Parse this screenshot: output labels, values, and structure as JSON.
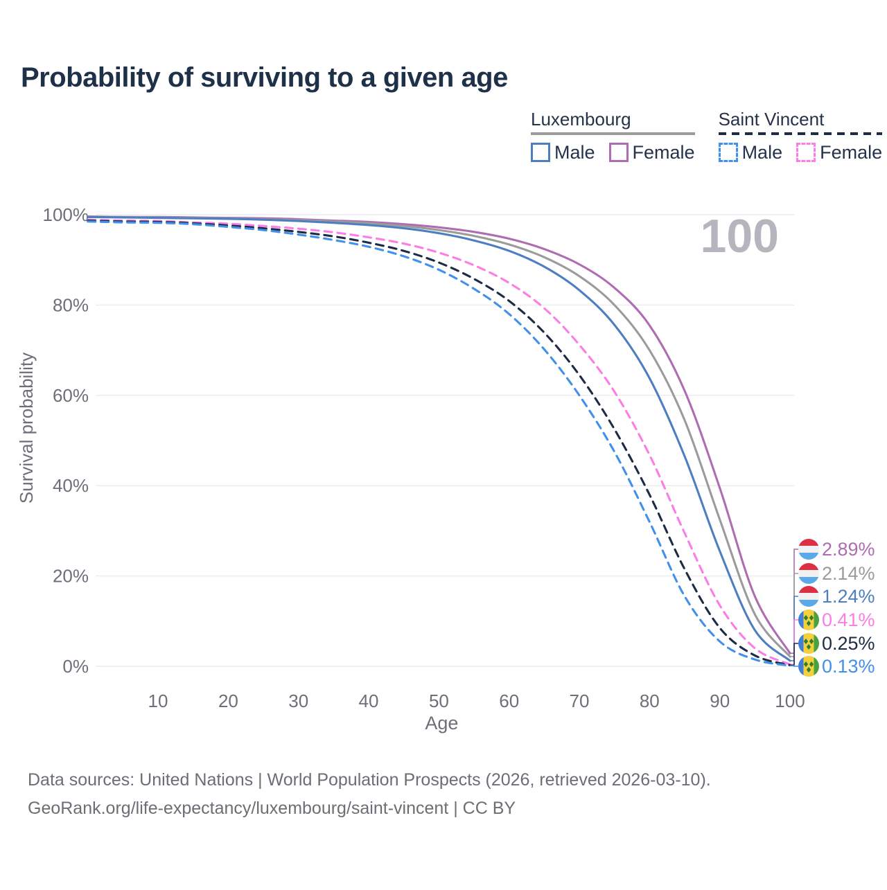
{
  "title": "Probability of surviving to a given age",
  "legend": {
    "groups": [
      {
        "title": "Luxembourg",
        "underline_color": "#9b9b9b",
        "underline_style": "solid",
        "items": [
          {
            "label": "Male",
            "color": "#4d7fc0",
            "dashed": false
          },
          {
            "label": "Female",
            "color": "#ae6cb2",
            "dashed": false
          }
        ]
      },
      {
        "title": "Saint Vincent",
        "underline_color": "#1d2b45",
        "underline_style": "dashed",
        "items": [
          {
            "label": "Male",
            "color": "#4190ea",
            "dashed": true
          },
          {
            "label": "Female",
            "color": "#fc7de4",
            "dashed": true
          }
        ]
      }
    ]
  },
  "chart_data": {
    "type": "line",
    "title": "Probability of surviving to a given age",
    "xlabel": "Age",
    "ylabel": "Survival probability",
    "xlim": [
      0,
      100
    ],
    "ylim": [
      0,
      100
    ],
    "grid": "horizontal",
    "legend_position": "top-right",
    "watermark": "100",
    "x_ticks": [
      10,
      20,
      30,
      40,
      50,
      60,
      70,
      80,
      90,
      100
    ],
    "y_tick_values": [
      0,
      20,
      40,
      60,
      80,
      100
    ],
    "y_tick_labels": [
      "0%",
      "20%",
      "40%",
      "60%",
      "80%",
      "100%"
    ],
    "ages": [
      0,
      5,
      10,
      15,
      20,
      25,
      30,
      35,
      40,
      45,
      50,
      55,
      60,
      65,
      70,
      75,
      80,
      85,
      90,
      95,
      100
    ],
    "series": [
      {
        "id": "luxembourg-female",
        "name": "Luxembourg Female",
        "color": "#ae6cb2",
        "dashed": false,
        "flag": "luxembourg",
        "end_label": "2.89%",
        "values": [
          99.6,
          99.5,
          99.5,
          99.4,
          99.3,
          99.2,
          99.0,
          98.7,
          98.4,
          97.9,
          97.2,
          96.2,
          94.7,
          92.4,
          89.0,
          83.8,
          75.5,
          61.0,
          39.5,
          15.5,
          2.89
        ]
      },
      {
        "id": "luxembourg-both",
        "name": "Luxembourg Both sexes",
        "color": "#9b9b9b",
        "dashed": false,
        "flag": "luxembourg",
        "end_label": "2.14%",
        "values": [
          99.5,
          99.5,
          99.4,
          99.3,
          99.2,
          99.0,
          98.8,
          98.5,
          98.1,
          97.5,
          96.6,
          95.3,
          93.4,
          90.6,
          86.4,
          80.0,
          70.0,
          54.5,
          32.5,
          11.5,
          2.14
        ]
      },
      {
        "id": "luxembourg-male",
        "name": "Luxembourg Male",
        "color": "#4d7fc0",
        "dashed": false,
        "flag": "luxembourg",
        "end_label": "1.24%",
        "values": [
          99.5,
          99.4,
          99.3,
          99.2,
          99.1,
          98.9,
          98.6,
          98.2,
          97.7,
          97.0,
          95.9,
          94.3,
          92.0,
          88.5,
          83.3,
          75.6,
          63.8,
          46.5,
          25.5,
          8.0,
          1.24
        ]
      },
      {
        "id": "saint-vincent-female",
        "name": "Saint Vincent Female",
        "color": "#fc7de4",
        "dashed": true,
        "flag": "saint-vincent",
        "end_label": "0.41%",
        "values": [
          98.9,
          98.7,
          98.6,
          98.3,
          98.0,
          97.5,
          96.9,
          96.1,
          95.0,
          93.6,
          91.6,
          88.8,
          84.9,
          79.3,
          71.2,
          60.8,
          46.8,
          29.5,
          13.5,
          4.0,
          0.41
        ]
      },
      {
        "id": "saint-vincent-both",
        "name": "Saint Vincent Both sexes",
        "color": "#1d2b45",
        "dashed": true,
        "flag": "saint-vincent",
        "end_label": "0.25%",
        "values": [
          98.7,
          98.5,
          98.4,
          98.1,
          97.6,
          97.0,
          96.2,
          95.2,
          93.8,
          92.0,
          89.4,
          85.8,
          80.9,
          73.9,
          64.5,
          52.5,
          38.0,
          21.5,
          8.5,
          2.4,
          0.25
        ]
      },
      {
        "id": "saint-vincent-male",
        "name": "Saint Vincent Male",
        "color": "#4190ea",
        "dashed": true,
        "flag": "saint-vincent",
        "end_label": "0.13%",
        "values": [
          98.5,
          98.3,
          98.2,
          97.9,
          97.3,
          96.6,
          95.6,
          94.4,
          92.9,
          90.8,
          87.8,
          83.6,
          78.0,
          70.2,
          60.0,
          47.5,
          32.0,
          15.5,
          5.5,
          1.5,
          0.13
        ]
      }
    ]
  },
  "footer": {
    "line1": "Data sources: United Nations | World Population Prospects (2026, retrieved 2026-03-10).",
    "line2": "GeoRank.org/life-expectancy/luxembourg/saint-vincent | CC BY"
  }
}
